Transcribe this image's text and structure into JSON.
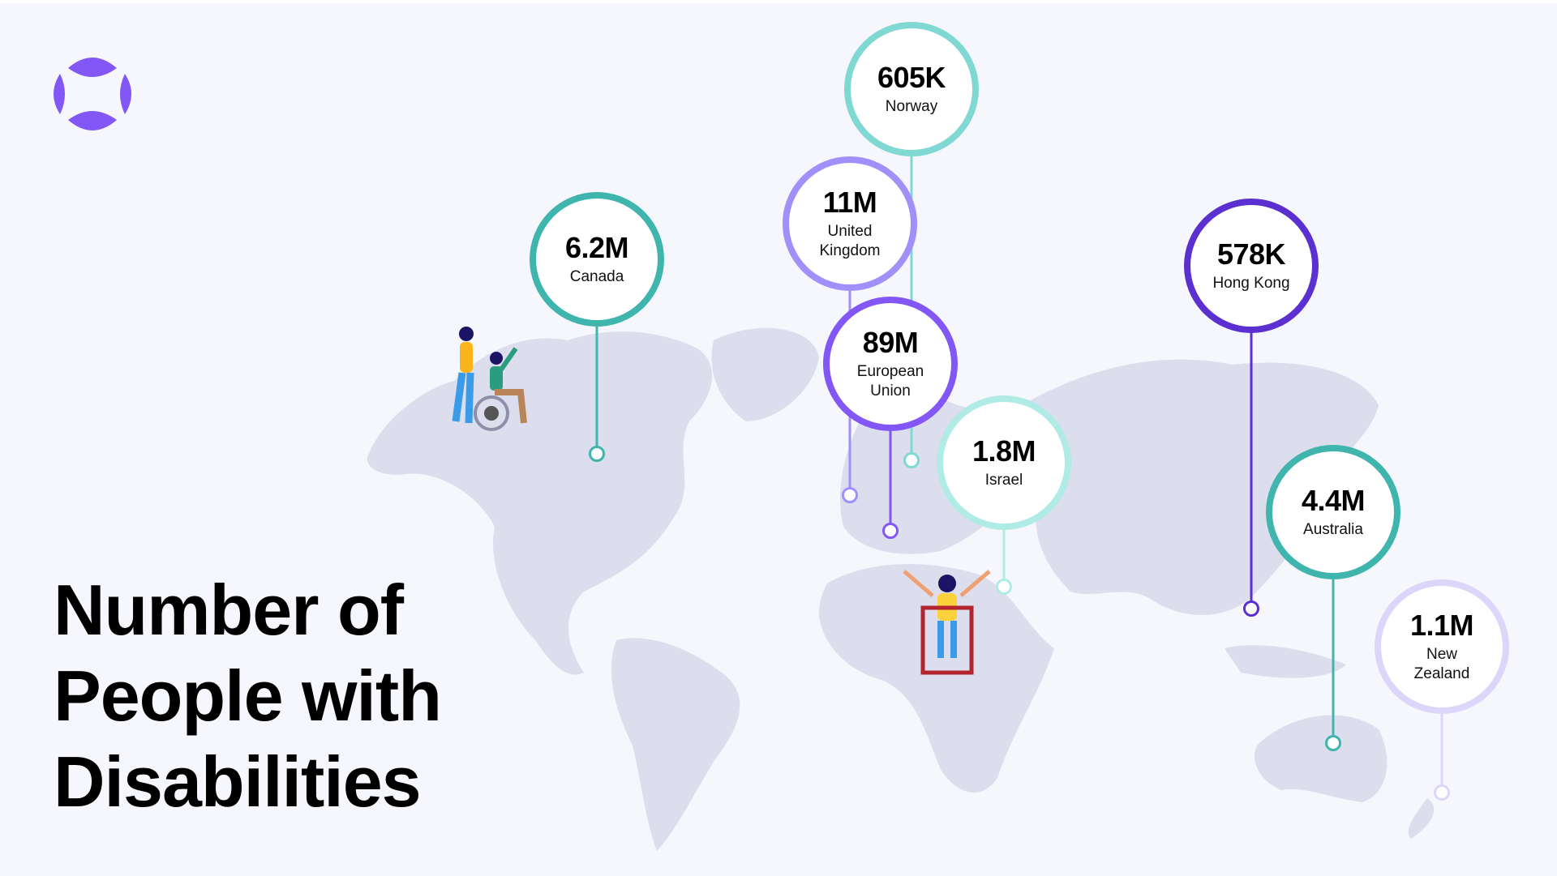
{
  "title": {
    "lines": [
      "Number of",
      "People with",
      "Disabilities"
    ]
  },
  "logo": {
    "icon": "brand-logo-icon",
    "color": "#8257f5"
  },
  "colors": {
    "background": "#f6f7fc",
    "map": "#dcdeee"
  },
  "stats": [
    {
      "id": "canada",
      "value": "6.2M",
      "label": "Canada",
      "color": "#3fb5ae"
    },
    {
      "id": "norway",
      "value": "605K",
      "label": "Norway",
      "color": "#7fd8d2"
    },
    {
      "id": "uk",
      "value": "11M",
      "label": "United Kingdom",
      "color": "#a18ffa"
    },
    {
      "id": "eu",
      "value": "89M",
      "label": "European Union",
      "color": "#8257f5"
    },
    {
      "id": "israel",
      "value": "1.8M",
      "label": "Israel",
      "color": "#b0ebe6"
    },
    {
      "id": "hongkong",
      "value": "578K",
      "label": "Hong Kong",
      "color": "#5b2fd0"
    },
    {
      "id": "australia",
      "value": "4.4M",
      "label": "Australia",
      "color": "#3fb5ae"
    },
    {
      "id": "newzealand",
      "value": "1.1M",
      "label": "New Zealand",
      "color": "#dcd6fb"
    }
  ]
}
